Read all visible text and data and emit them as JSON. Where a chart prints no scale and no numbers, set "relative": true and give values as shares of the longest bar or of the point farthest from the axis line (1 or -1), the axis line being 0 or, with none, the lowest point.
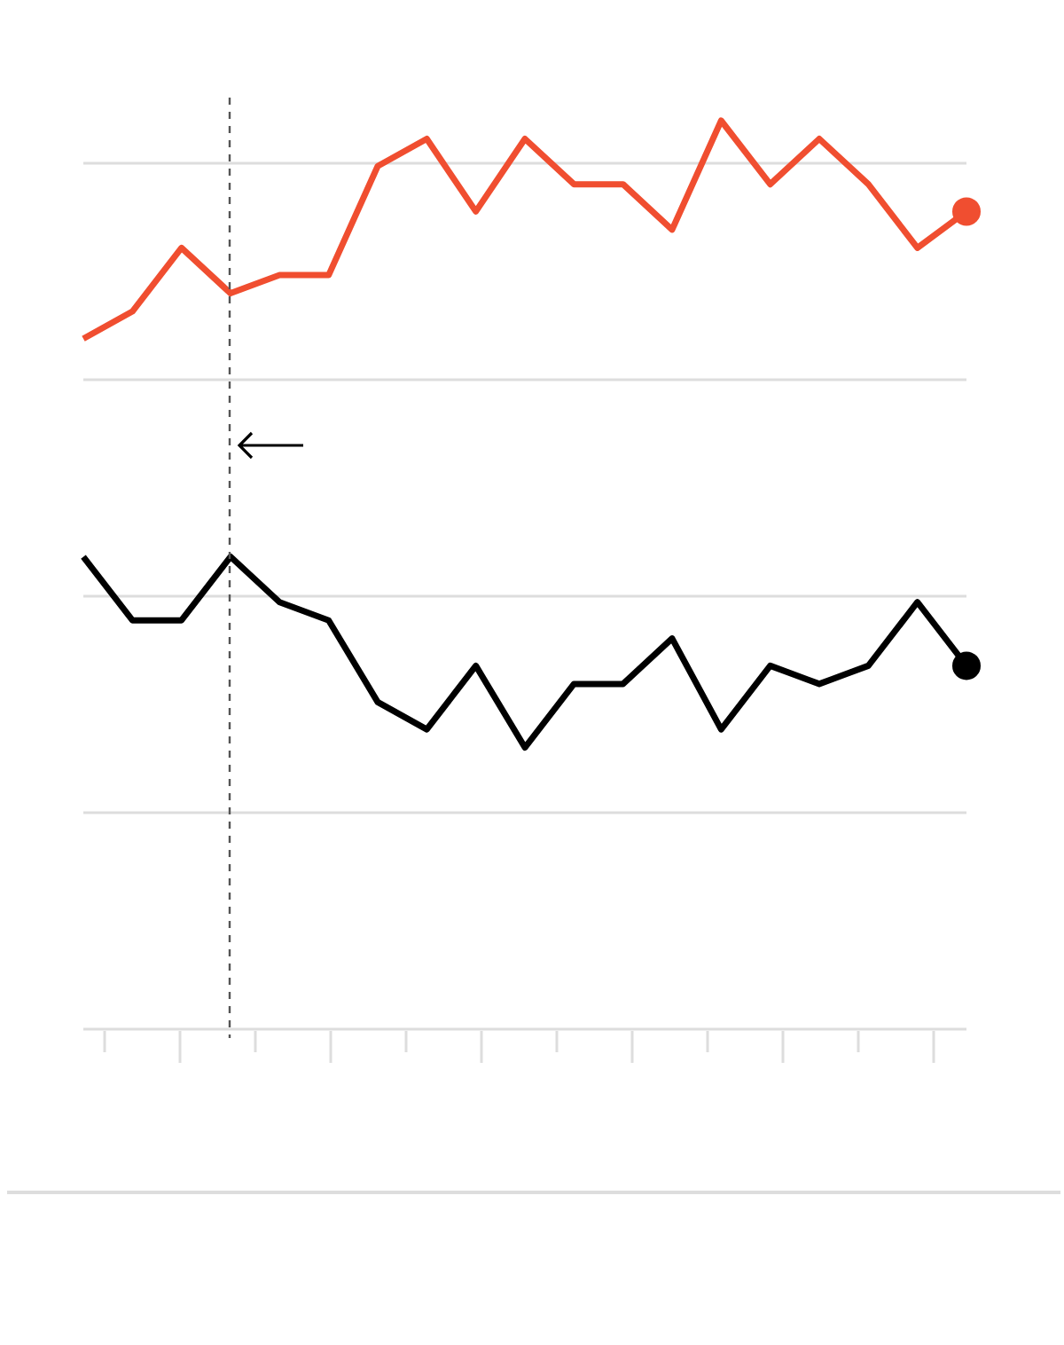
{
  "chart_data": {
    "type": "line",
    "relative": true,
    "categories": [
      null,
      null,
      null,
      null,
      null,
      null,
      null,
      null,
      null,
      null,
      null,
      null,
      null,
      null,
      null,
      null,
      null,
      null,
      null
    ],
    "grid": "y",
    "series": [
      {
        "color": "#f04e30",
        "values": [
          0.76,
          0.79,
          0.86,
          0.81,
          0.83,
          0.83,
          0.95,
          0.98,
          0.9,
          0.98,
          0.93,
          0.93,
          0.88,
          1,
          0.93,
          0.98,
          0.93,
          0.86,
          0.9
        ]
      },
      {
        "color": "#000000",
        "values": [
          0.52,
          0.45,
          0.45,
          0.52,
          0.47,
          0.45,
          0.36,
          0.33,
          0.4,
          0.31,
          0.38,
          0.38,
          0.43,
          0.33,
          0.4,
          0.38,
          0.4,
          0.47,
          0.4
        ]
      }
    ]
  }
}
